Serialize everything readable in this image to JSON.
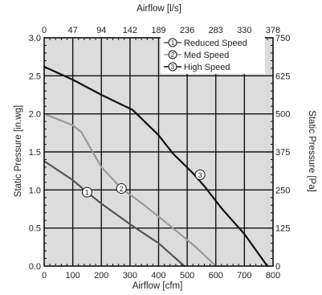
{
  "chart_data": {
    "type": "line",
    "top_axis": {
      "label": "Airflow [l/s]",
      "ticks": [
        0,
        47,
        94,
        142,
        189,
        236,
        283,
        330,
        378
      ]
    },
    "bottom_axis": {
      "label": "Airflow [cfm]",
      "ticks": [
        0,
        100,
        200,
        300,
        400,
        500,
        600,
        700,
        800
      ],
      "range": [
        0,
        800
      ]
    },
    "left_axis": {
      "label": "Static Pressure [in.wg]",
      "ticks": [
        "0.0",
        "0.5",
        "1.0",
        "1.5",
        "2.0",
        "2.5",
        "3.0"
      ],
      "range": [
        0,
        3
      ]
    },
    "right_axis": {
      "label": "Static Pressure [Pa]",
      "ticks": [
        "0",
        "125",
        "250",
        "375",
        "500",
        "625",
        "750"
      ]
    },
    "grid": true,
    "legend_position": "top-right",
    "series": [
      {
        "name": "Reduced Speed",
        "marker": "1",
        "color": "#555555",
        "points": [
          [
            0,
            1.38
          ],
          [
            100,
            1.13
          ],
          [
            150,
            0.97
          ],
          [
            200,
            0.82
          ],
          [
            300,
            0.55
          ],
          [
            400,
            0.3
          ],
          [
            490,
            0.0
          ]
        ]
      },
      {
        "name": "Med Speed",
        "marker": "2",
        "color": "#9a9a9a",
        "points": [
          [
            0,
            2.0
          ],
          [
            100,
            1.85
          ],
          [
            130,
            1.76
          ],
          [
            200,
            1.3
          ],
          [
            270,
            1.02
          ],
          [
            350,
            0.8
          ],
          [
            450,
            0.5
          ],
          [
            530,
            0.25
          ],
          [
            600,
            0.0
          ]
        ]
      },
      {
        "name": "High Speed",
        "marker": "3",
        "color": "#111111",
        "points": [
          [
            0,
            2.62
          ],
          [
            100,
            2.45
          ],
          [
            200,
            2.25
          ],
          [
            310,
            2.05
          ],
          [
            400,
            1.72
          ],
          [
            450,
            1.48
          ],
          [
            520,
            1.22
          ],
          [
            560,
            1.05
          ],
          [
            620,
            0.76
          ],
          [
            700,
            0.42
          ],
          [
            780,
            0.0
          ]
        ]
      }
    ],
    "label_positions": [
      {
        "marker": "1",
        "x": 150,
        "y": 0.97
      },
      {
        "marker": "2",
        "x": 270,
        "y": 1.02
      },
      {
        "marker": "3",
        "x": 545,
        "y": 1.2
      }
    ]
  }
}
